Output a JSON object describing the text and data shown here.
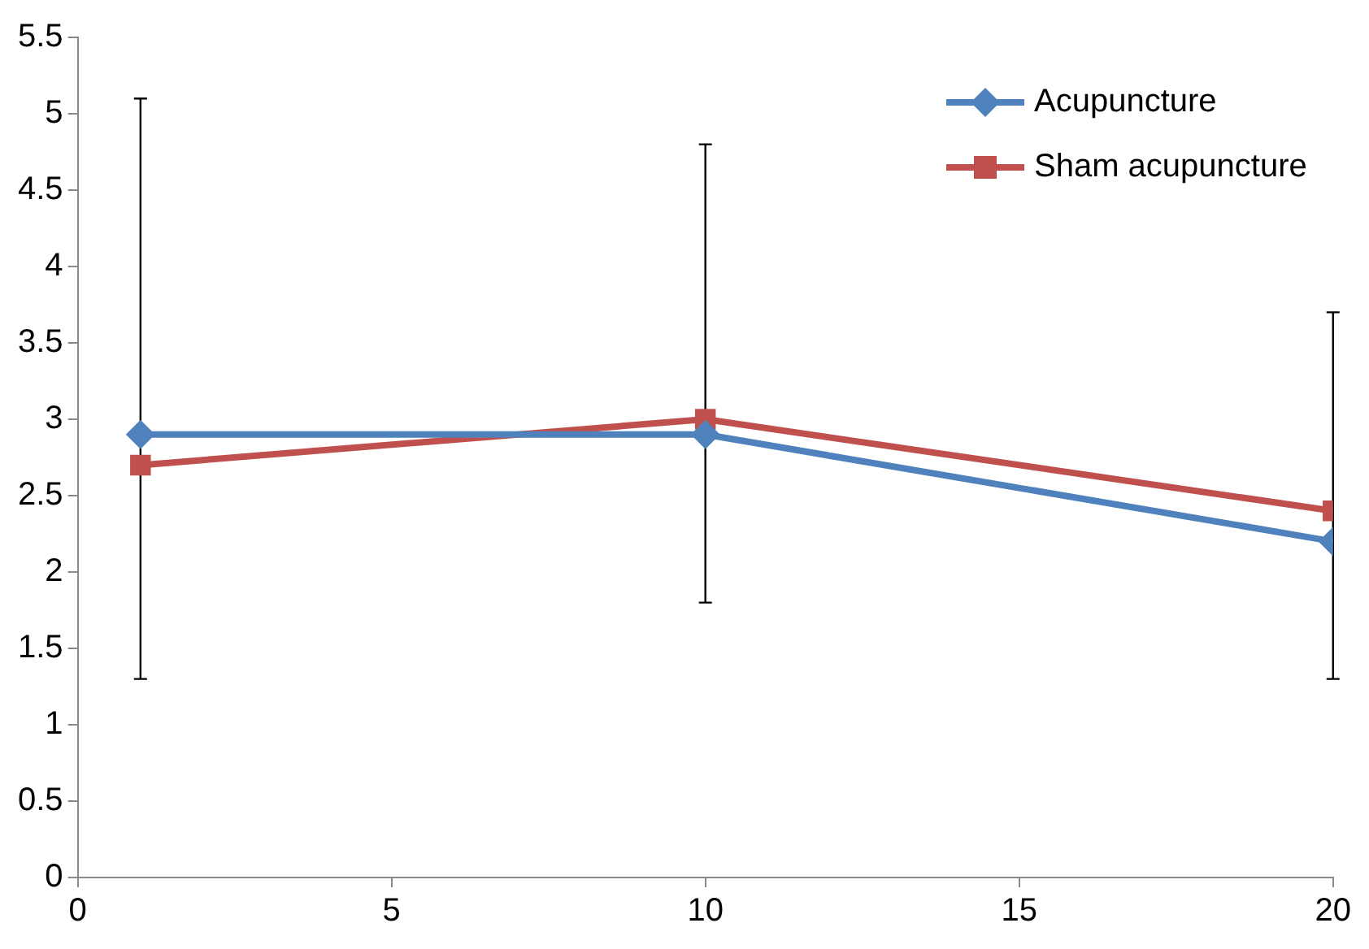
{
  "chart_data": {
    "type": "line",
    "x": [
      1,
      10,
      20
    ],
    "xlim": [
      0,
      20
    ],
    "xticks": [
      0,
      5,
      10,
      15,
      20
    ],
    "ylim": [
      0,
      5.5
    ],
    "yticks": [
      0,
      0.5,
      1,
      1.5,
      2,
      2.5,
      3,
      3.5,
      4,
      4.5,
      5,
      5.5
    ],
    "grid": false,
    "legend": "top right",
    "series": [
      {
        "name": "Acupuncture",
        "color": "#4f81bd",
        "values": [
          2.9,
          2.9,
          2.2
        ],
        "marker": "diamond",
        "errors": [
          [
            1.3,
            5.1
          ],
          [
            1.8,
            4.8
          ],
          [
            1.3,
            3.7
          ]
        ]
      },
      {
        "name": "Sham acupuncture",
        "color": "#c0504d",
        "values": [
          2.7,
          3.0,
          2.4
        ],
        "marker": "square"
      }
    ]
  }
}
